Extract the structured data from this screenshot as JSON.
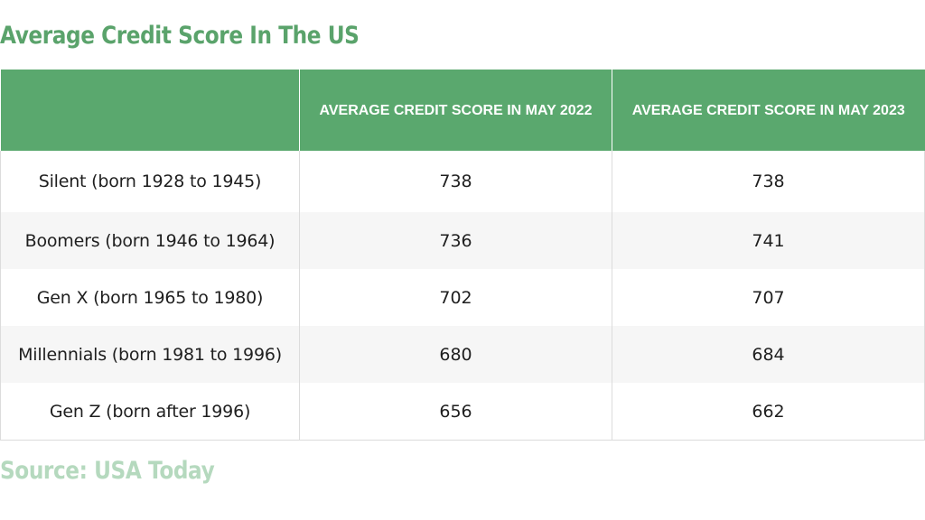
{
  "title": "Average Credit Score In The US",
  "source": "Source: USA Today",
  "chart_data": {
    "type": "table",
    "title": "Average Credit Score In The US",
    "columns": [
      "",
      "AVERAGE CREDIT SCORE IN MAY 2022",
      "AVERAGE CREDIT SCORE IN MAY 2023"
    ],
    "rows": [
      {
        "label": "Silent (born 1928 to 1945)",
        "values": [
          738,
          738
        ]
      },
      {
        "label": "Boomers (born 1946 to 1964)",
        "values": [
          736,
          741
        ]
      },
      {
        "label": "Gen X (born 1965 to 1980)",
        "values": [
          702,
          707
        ]
      },
      {
        "label": "Millennials (born 1981 to 1996)",
        "values": [
          680,
          684
        ]
      },
      {
        "label": "Gen Z (born after 1996)",
        "values": [
          656,
          662
        ]
      }
    ],
    "source": "Source: USA Today"
  },
  "colors": {
    "header_bg": "#5aa86e",
    "title": "#5aa36b",
    "source": "#b5d9be"
  }
}
